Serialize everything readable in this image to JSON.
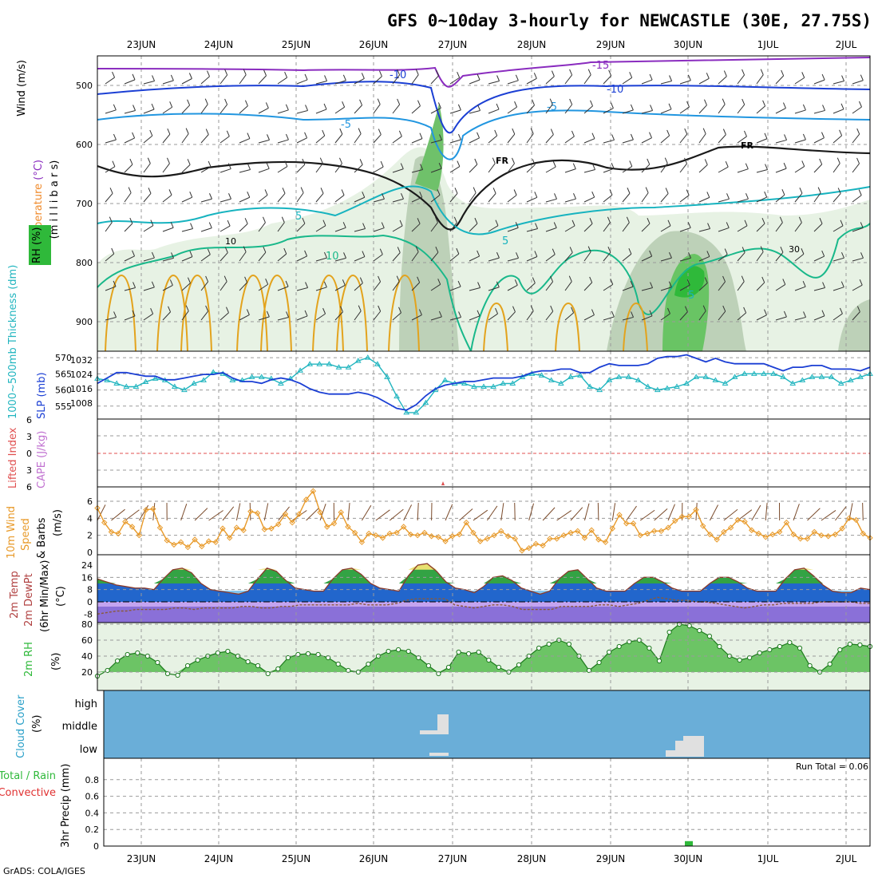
{
  "title": "GFS 0~10day 3-hourly for NEWCASTLE (30E, 27.75S)",
  "footer": "GrADS: COLA/IGES",
  "dates": [
    "23JUN",
    "24JUN",
    "25JUN",
    "26JUN",
    "27JUN",
    "28JUN",
    "29JUN",
    "30JUN",
    "1JUL",
    "2JUL"
  ],
  "chart_data": [
    {
      "type": "contour",
      "panel": "upper-air cross-section",
      "ylabel_parts": [
        "Wind (m/s)",
        "Temperature (°C)",
        "RH (%)"
      ],
      "ylabel_unit": "(m i l l i b a r s)",
      "yticks": [
        500,
        600,
        700,
        800,
        900
      ],
      "temperature_contour_labels": [
        "-15",
        "-10",
        "-10",
        "-5",
        "-5",
        "5",
        "5",
        "5",
        "10"
      ],
      "freezing_labels": [
        "FR",
        "FR"
      ],
      "rh_labels": [
        "10",
        "30"
      ]
    },
    {
      "type": "line",
      "panel": "thickness-slp",
      "ylabel_left": "1000~500mb Thickness (dm)",
      "ylabel_right": "SLP (mb)",
      "yticks_left": [
        555,
        560,
        565,
        570
      ],
      "yticks_right": [
        1008,
        1016,
        1024,
        1032
      ],
      "series": [
        {
          "name": "1000~500mb Thickness (dm)",
          "values": [
            563.5,
            563,
            562,
            561,
            561,
            562.5,
            563.5,
            563,
            561,
            560,
            562,
            563,
            565.5,
            565,
            563,
            563,
            564,
            564,
            563.5,
            562,
            563.5,
            566,
            568,
            568,
            568,
            567,
            567,
            569,
            570,
            568,
            564,
            558,
            553,
            553,
            556,
            560,
            563,
            562,
            562,
            561,
            561,
            561,
            562,
            562,
            564,
            565,
            564.5,
            563,
            562,
            564,
            564.5,
            561,
            560,
            563,
            564,
            564,
            563,
            561,
            560,
            560.5,
            561,
            562,
            564,
            564,
            563,
            562,
            564,
            565,
            565,
            565,
            565,
            564,
            562,
            563,
            564,
            564,
            564,
            562,
            563,
            564,
            565
          ]
        },
        {
          "name": "SLP (mb)",
          "values": [
            1019,
            1022,
            1025,
            1025,
            1024,
            1023,
            1023,
            1021,
            1021,
            1022,
            1023,
            1024,
            1024,
            1025,
            1022,
            1020,
            1020,
            1019,
            1021,
            1022,
            1021,
            1019,
            1016,
            1014,
            1013,
            1013,
            1013,
            1014,
            1013,
            1011,
            1008,
            1005,
            1004,
            1007,
            1012,
            1016,
            1018,
            1019,
            1020,
            1020,
            1021,
            1022,
            1022,
            1022,
            1023,
            1025,
            1026,
            1026,
            1027,
            1027,
            1025,
            1025,
            1028,
            1030,
            1029,
            1029,
            1029,
            1030,
            1033,
            1034,
            1034,
            1035,
            1033,
            1031,
            1033,
            1031,
            1030,
            1030,
            1030,
            1030,
            1028,
            1026,
            1028,
            1028,
            1029,
            1029,
            1027,
            1027,
            1027,
            1026,
            1028
          ]
        }
      ]
    },
    {
      "type": "line",
      "panel": "cape-lifted-index",
      "ylabel_left": "Lifted Index",
      "ylabel_right": "CAPE (J/kg)",
      "yticks": [
        6,
        3,
        0,
        -3,
        -6
      ],
      "ytick_labels": [
        "6",
        "3",
        "0",
        "3",
        "6"
      ],
      "series": []
    },
    {
      "type": "line",
      "panel": "10m wind",
      "ylabel": "10m Wind Speed & Barbs (m/s)",
      "yticks": [
        0,
        2,
        4,
        6
      ],
      "ylim": [
        0,
        7.5
      ],
      "series": [
        {
          "name": "10m Wind Speed",
          "values": [
            5.2,
            3.5,
            2.4,
            2.2,
            3.6,
            3.0,
            2.0,
            5.0,
            5.1,
            2.9,
            1.4,
            0.9,
            1.2,
            0.6,
            1.5,
            0.7,
            1.3,
            1.2,
            2.8,
            1.7,
            2.9,
            2.6,
            4.8,
            4.6,
            2.7,
            2.8,
            3.3,
            4.5,
            3.5,
            4.5,
            6.2,
            7.2,
            4.7,
            3.0,
            3.4,
            4.7,
            3.0,
            2.3,
            1.2,
            2.2,
            2.0,
            1.7,
            2.2,
            2.3,
            3.0,
            2.1,
            2.0,
            2.3,
            1.9,
            1.8,
            1.3,
            1.9,
            2.1,
            3.5,
            2.3,
            1.3,
            1.6,
            2.0,
            2.5,
            1.9,
            1.6,
            0.2,
            0.5,
            1.0,
            0.8,
            1.6,
            1.6,
            2.0,
            2.3,
            2.5,
            1.7,
            2.6,
            1.5,
            1.2,
            2.8,
            4.4,
            3.4,
            3.4,
            2.0,
            2.2,
            2.5,
            2.5,
            2.9,
            3.7,
            4.2,
            4.2,
            5.0,
            3.1,
            2.1,
            1.5,
            2.4,
            2.9,
            3.8,
            3.6,
            2.6,
            2.2,
            1.8,
            2.1,
            2.4,
            3.5,
            2.1,
            1.6,
            1.6,
            2.4,
            2.0,
            1.9,
            2.1,
            2.8,
            4.0,
            3.8,
            2.2,
            1.7
          ]
        }
      ]
    },
    {
      "type": "area",
      "panel": "2m temperature",
      "ylabel": "2m Temp 2m DewPt (6hr Min/Max) (°C)",
      "yticks": [
        -8,
        0,
        8,
        16,
        24
      ],
      "ylim": [
        -12,
        28
      ],
      "series": [
        {
          "name": "2m Temp",
          "values": [
            15,
            13,
            11,
            10,
            9,
            9,
            8,
            15,
            21,
            22,
            19,
            12,
            8,
            7,
            6,
            5,
            7,
            15,
            22,
            20,
            14,
            9,
            8,
            7,
            7,
            15,
            21,
            22,
            18,
            12,
            9,
            8,
            7,
            17,
            24,
            25,
            20,
            13,
            9,
            8,
            6,
            10,
            16,
            17,
            14,
            9,
            7,
            5,
            7,
            15,
            20,
            21,
            15,
            9,
            7,
            7,
            7,
            12,
            16,
            16,
            13,
            9,
            7,
            7,
            7,
            12,
            16,
            16,
            13,
            9,
            7,
            7,
            7,
            15,
            21,
            22,
            17,
            11,
            7,
            6,
            6,
            9,
            8
          ]
        },
        {
          "name": "2m DewPt",
          "values": [
            -8,
            -7,
            -6,
            -6,
            -5,
            -5,
            -5,
            -5,
            -4,
            -4,
            -5,
            -4,
            -4,
            -4,
            -4,
            -3,
            -3,
            -4,
            -4,
            -3,
            -3,
            -2,
            -2,
            -2,
            -2,
            -2,
            -2,
            -1,
            -2,
            -2,
            -2,
            -1,
            1,
            2,
            2,
            2,
            2,
            -2,
            -3,
            -4,
            -3,
            -2,
            -2,
            -3,
            -5,
            -5,
            -5,
            -5,
            -3,
            -3,
            -3,
            -3,
            -2,
            -2,
            -3,
            -2,
            -1,
            1,
            3,
            2,
            1,
            1,
            0,
            0,
            -1,
            -2,
            -3,
            -4,
            -3,
            -2,
            -2,
            -1,
            -1,
            -1,
            -1,
            0,
            0,
            0,
            0,
            -1,
            -1
          ]
        }
      ]
    },
    {
      "type": "area",
      "panel": "2m RH",
      "ylabel": "2m RH (%)",
      "yticks": [
        20,
        40,
        60,
        80
      ],
      "ylim": [
        10,
        82
      ],
      "series": [
        {
          "name": "2m RH",
          "values": [
            15,
            22,
            34,
            42,
            44,
            40,
            32,
            18,
            16,
            28,
            35,
            40,
            44,
            46,
            40,
            33,
            28,
            18,
            24,
            38,
            42,
            43,
            42,
            38,
            30,
            22,
            20,
            30,
            40,
            46,
            48,
            46,
            38,
            28,
            18,
            26,
            45,
            43,
            45,
            35,
            26,
            20,
            29,
            40,
            50,
            55,
            60,
            55,
            40,
            22,
            32,
            45,
            52,
            58,
            60,
            50,
            34,
            70,
            80,
            78,
            72,
            65,
            52,
            40,
            35,
            38,
            44,
            48,
            52,
            57,
            50,
            28,
            20,
            30,
            48,
            55,
            54,
            52
          ]
        }
      ]
    },
    {
      "type": "bar",
      "panel": "cloud cover",
      "ylabel": "Cloud Cover (%)",
      "ytick_labels": [
        "high",
        "middle",
        "low"
      ],
      "series": []
    },
    {
      "type": "bar",
      "panel": "precipitation",
      "ylabel": "3hr Precip (mm)",
      "legend": [
        "Total / Rain",
        "Convective"
      ],
      "annotation": "Run Total = 0.06",
      "yticks": [
        0,
        0.2,
        0.4,
        0.6,
        0.8
      ],
      "ylim": [
        0,
        1
      ],
      "series": [
        {
          "name": "Total / Rain",
          "x": "30JUN",
          "values": [
            0.06
          ]
        }
      ]
    }
  ]
}
